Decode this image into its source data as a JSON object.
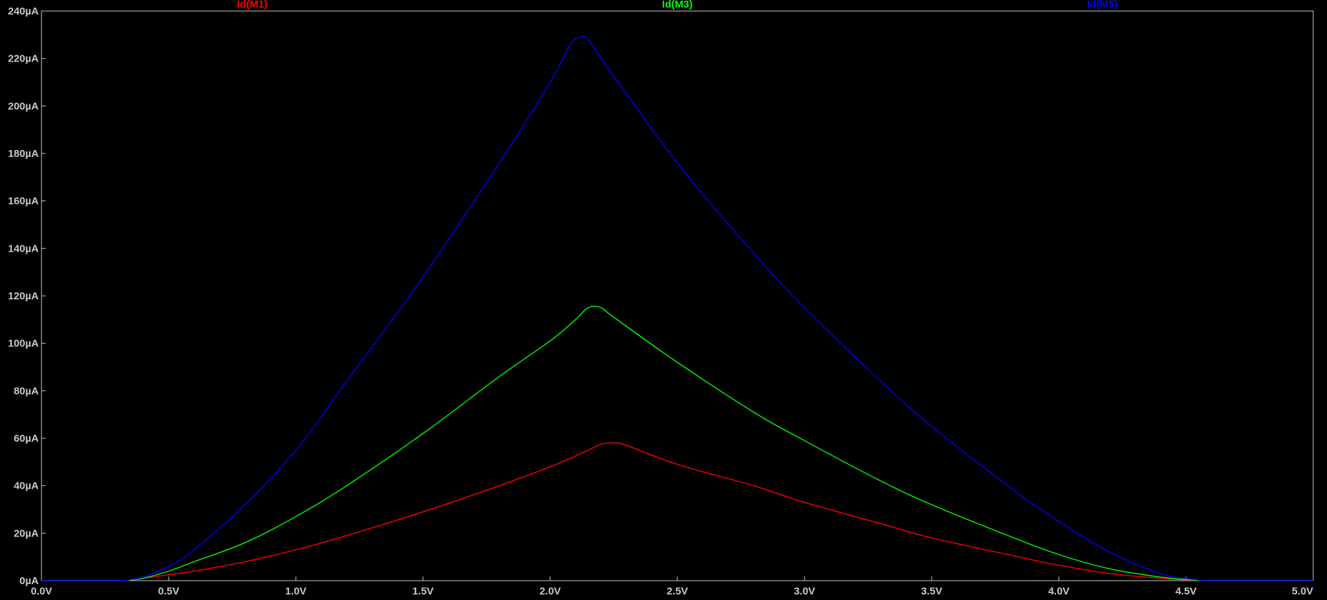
{
  "chart_data": {
    "type": "line",
    "title": "",
    "xlabel": "",
    "ylabel": "",
    "xlim": [
      0,
      5
    ],
    "ylim": [
      0,
      240
    ],
    "grid": false,
    "legend": "top (trace names above plot)",
    "x_ticks": [
      {
        "value": 0.0,
        "label": "0.0V"
      },
      {
        "value": 0.5,
        "label": "0.5V"
      },
      {
        "value": 1.0,
        "label": "1.0V"
      },
      {
        "value": 1.5,
        "label": "1.5V"
      },
      {
        "value": 2.0,
        "label": "2.0V"
      },
      {
        "value": 2.5,
        "label": "2.5V"
      },
      {
        "value": 3.0,
        "label": "3.0V"
      },
      {
        "value": 3.5,
        "label": "3.5V"
      },
      {
        "value": 4.0,
        "label": "4.0V"
      },
      {
        "value": 4.5,
        "label": "4.5V"
      },
      {
        "value": 5.0,
        "label": "5.0V"
      }
    ],
    "y_ticks": [
      {
        "value": 0,
        "label": "0µA"
      },
      {
        "value": 20,
        "label": "20µA"
      },
      {
        "value": 40,
        "label": "40µA"
      },
      {
        "value": 60,
        "label": "60µA"
      },
      {
        "value": 80,
        "label": "80µA"
      },
      {
        "value": 100,
        "label": "100µA"
      },
      {
        "value": 120,
        "label": "120µA"
      },
      {
        "value": 140,
        "label": "140µA"
      },
      {
        "value": 160,
        "label": "160µA"
      },
      {
        "value": 180,
        "label": "180µA"
      },
      {
        "value": 200,
        "label": "200µA"
      },
      {
        "value": 220,
        "label": "220µA"
      },
      {
        "value": 240,
        "label": "240µA"
      }
    ],
    "series": [
      {
        "name": "Id(M1)",
        "color": "#ff0000",
        "x": [
          0.0,
          0.3,
          0.35,
          0.4,
          0.5,
          0.6,
          0.8,
          1.0,
          1.2,
          1.5,
          1.8,
          2.0,
          2.15,
          2.2,
          2.25,
          2.3,
          2.5,
          2.8,
          3.0,
          3.3,
          3.5,
          3.8,
          4.0,
          4.2,
          4.4,
          4.5,
          4.55,
          4.6,
          5.0
        ],
        "y": [
          0,
          0,
          0.3,
          1,
          2.5,
          4,
          8,
          13,
          19,
          29,
          40,
          48,
          55,
          57.5,
          58,
          57,
          49,
          40,
          33,
          24,
          18,
          11,
          6.5,
          3,
          1,
          0.3,
          0.1,
          0,
          0
        ]
      },
      {
        "name": "Id(M3)",
        "color": "#00ff00",
        "x": [
          0.0,
          0.3,
          0.35,
          0.4,
          0.5,
          0.6,
          0.8,
          1.0,
          1.2,
          1.5,
          1.8,
          2.0,
          2.1,
          2.15,
          2.2,
          2.25,
          2.5,
          2.8,
          3.0,
          3.3,
          3.5,
          3.8,
          4.0,
          4.2,
          4.4,
          4.5,
          4.55,
          4.6,
          5.0
        ],
        "y": [
          0,
          0,
          0.3,
          1,
          4,
          8,
          16,
          27,
          40,
          62,
          86,
          101,
          110,
          115,
          115,
          111,
          92,
          71,
          59,
          42,
          32,
          19,
          11,
          5,
          1.5,
          0.5,
          0.1,
          0,
          0
        ]
      },
      {
        "name": "Id(M5)",
        "color": "#0000ff",
        "x": [
          0.0,
          0.3,
          0.35,
          0.4,
          0.5,
          0.6,
          0.8,
          1.0,
          1.2,
          1.5,
          1.8,
          2.0,
          2.08,
          2.12,
          2.15,
          2.2,
          2.5,
          2.8,
          3.0,
          3.3,
          3.5,
          3.8,
          4.0,
          4.2,
          4.4,
          4.5,
          4.55,
          4.6,
          5.0
        ],
        "y": [
          0,
          0,
          0.5,
          1.5,
          6,
          13,
          32,
          55,
          84,
          128,
          176,
          210,
          226,
          229,
          228,
          220,
          176,
          138,
          115,
          84,
          65,
          40,
          25,
          12,
          3,
          1,
          0.3,
          0,
          0
        ]
      }
    ]
  }
}
